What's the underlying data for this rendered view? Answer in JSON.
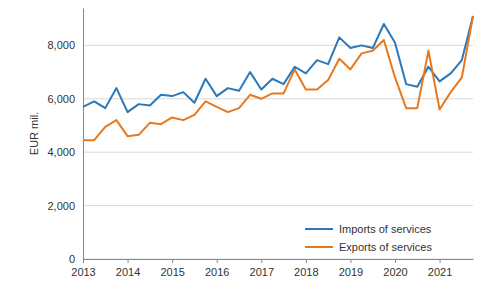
{
  "chart_data": {
    "type": "line",
    "y_label": "EUR mil.",
    "categories": [
      "2013",
      null,
      null,
      null,
      "2014",
      null,
      null,
      null,
      "2015",
      null,
      null,
      null,
      "2016",
      null,
      null,
      null,
      "2017",
      null,
      null,
      null,
      "2018",
      null,
      null,
      null,
      "2019",
      null,
      null,
      null,
      "2020",
      null,
      null,
      null,
      "2021",
      null,
      null,
      null
    ],
    "series": [
      {
        "name": "Imports of services",
        "color": "#2a78b9",
        "values": [
          5700,
          5900,
          5650,
          6400,
          5500,
          5800,
          5750,
          6150,
          6100,
          6250,
          5850,
          6750,
          6100,
          6400,
          6300,
          7000,
          6350,
          6750,
          6550,
          7200,
          6950,
          7450,
          7300,
          8300,
          7900,
          8000,
          7900,
          8800,
          8100,
          6550,
          6450,
          7200,
          6650,
          6950,
          7450,
          9100
        ]
      },
      {
        "name": "Exports of services",
        "color": "#e8781e",
        "values": [
          4450,
          4450,
          4950,
          5200,
          4600,
          4650,
          5100,
          5050,
          5300,
          5200,
          5400,
          5900,
          5700,
          5500,
          5650,
          6150,
          6000,
          6200,
          6200,
          7100,
          6350,
          6350,
          6700,
          7500,
          7100,
          7700,
          7800,
          8200,
          6800,
          5650,
          5650,
          7800,
          5600,
          6250,
          6800,
          9100
        ]
      }
    ],
    "ylim": [
      0,
      9400
    ],
    "yticks": [
      0,
      {
        "value": 2000,
        "label": "2,000"
      },
      {
        "value": 4000,
        "label": "4,000"
      },
      {
        "value": 6000,
        "label": "6,000"
      },
      {
        "value": 8000,
        "label": "8,000"
      }
    ],
    "grid": true,
    "legend": "lower right"
  }
}
